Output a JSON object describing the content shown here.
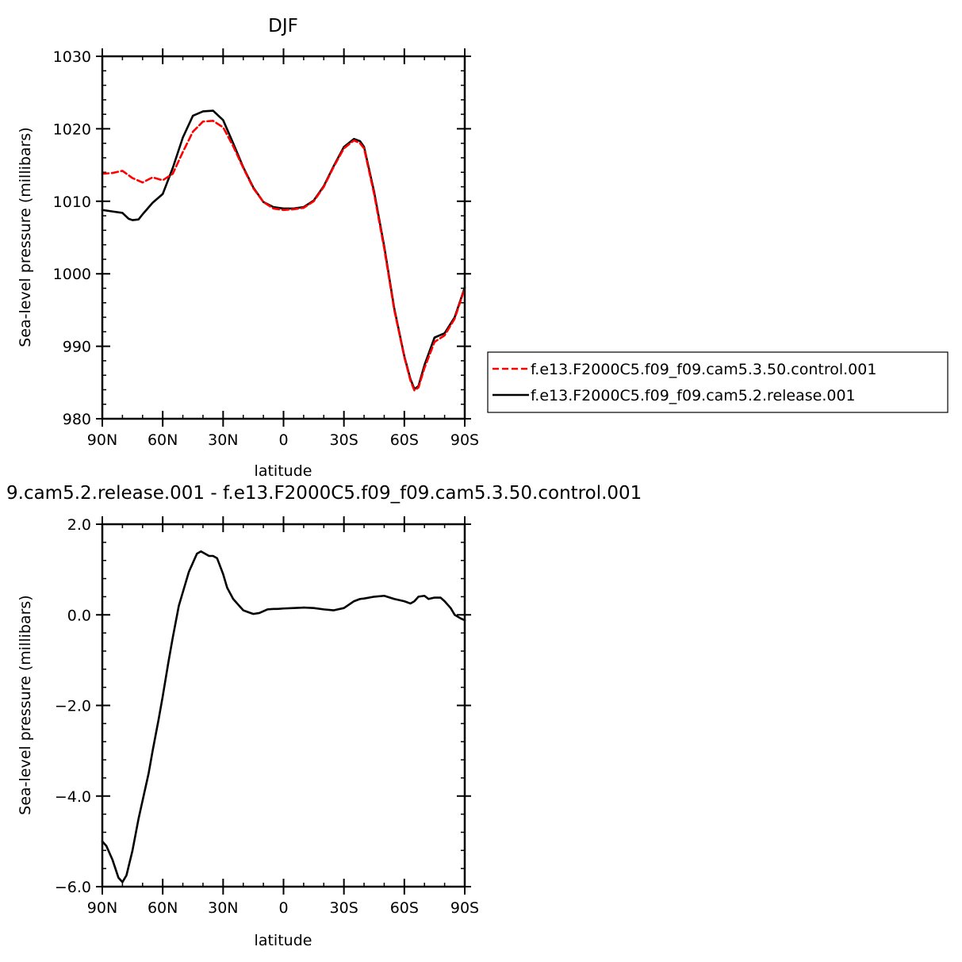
{
  "chart_data": [
    {
      "type": "line",
      "title": "DJF",
      "xlabel": "latitude",
      "ylabel": "Sea-level pressure (millibars)",
      "xlim": [
        90,
        -90
      ],
      "ylim": [
        980,
        1030
      ],
      "xticks": [
        90,
        60,
        30,
        0,
        -30,
        -60,
        -90
      ],
      "xtick_labels": [
        "90N",
        "60N",
        "30N",
        "0",
        "30S",
        "60S",
        "90S"
      ],
      "yticks": [
        980,
        990,
        1000,
        1010,
        1020,
        1030
      ],
      "ytick_labels": [
        "980",
        "990",
        "1000",
        "1010",
        "1020",
        "1030"
      ],
      "legend_position": "right",
      "series": [
        {
          "name": "f.e13.F2000C5.f09_f09.cam5.3.50.control.001",
          "color": "#ff0000",
          "style": "dashed",
          "x": [
            90,
            85,
            80,
            75,
            70,
            65,
            60,
            55,
            50,
            45,
            40,
            35,
            30,
            25,
            20,
            15,
            10,
            5,
            0,
            -5,
            -10,
            -15,
            -20,
            -25,
            -30,
            -35,
            -38,
            -40,
            -45,
            -50,
            -55,
            -60,
            -63,
            -65,
            -67,
            -70,
            -75,
            -80,
            -85,
            -90
          ],
          "y": [
            1013.8,
            1013.9,
            1014.2,
            1013.2,
            1012.6,
            1013.3,
            1012.9,
            1013.8,
            1016.8,
            1019.6,
            1021.0,
            1021.1,
            1020.2,
            1017.6,
            1014.6,
            1011.8,
            1009.9,
            1009.0,
            1008.8,
            1008.9,
            1009.1,
            1010.0,
            1012.0,
            1014.8,
            1017.3,
            1018.4,
            1018.0,
            1017.3,
            1011.0,
            1003.5,
            995.0,
            988.5,
            985.3,
            983.9,
            984.3,
            987.0,
            990.6,
            991.5,
            993.8,
            998.0
          ]
        },
        {
          "name": "f.e13.F2000C5.f09_f09.cam5.2.release.001",
          "color": "#000000",
          "style": "solid",
          "x": [
            90,
            85,
            80,
            77,
            75,
            72,
            70,
            65,
            60,
            55,
            50,
            45,
            40,
            35,
            30,
            25,
            20,
            15,
            10,
            5,
            0,
            -5,
            -10,
            -15,
            -20,
            -25,
            -30,
            -35,
            -38,
            -40,
            -45,
            -50,
            -55,
            -60,
            -63,
            -65,
            -67,
            -70,
            -75,
            -80,
            -85,
            -90
          ],
          "y": [
            1008.8,
            1008.6,
            1008.4,
            1007.6,
            1007.4,
            1007.5,
            1008.2,
            1009.8,
            1011.0,
            1014.6,
            1018.8,
            1021.8,
            1022.4,
            1022.5,
            1021.2,
            1018.0,
            1014.7,
            1011.9,
            1009.9,
            1009.2,
            1009.0,
            1009.0,
            1009.2,
            1010.1,
            1012.1,
            1014.9,
            1017.5,
            1018.6,
            1018.3,
            1017.5,
            1011.3,
            1003.8,
            995.2,
            988.6,
            985.5,
            984.1,
            984.5,
            987.4,
            991.2,
            991.8,
            994.0,
            998.1
          ]
        }
      ]
    },
    {
      "type": "line",
      "title": "9.cam5.2.release.001 - f.e13.F2000C5.f09_f09.cam5.3.50.control.001",
      "xlabel": "latitude",
      "ylabel": "Sea-level pressure (millibars)",
      "xlim": [
        90,
        -90
      ],
      "ylim": [
        -6.0,
        2.0
      ],
      "xticks": [
        90,
        60,
        30,
        0,
        -30,
        -60,
        -90
      ],
      "xtick_labels": [
        "90N",
        "60N",
        "30N",
        "0",
        "30S",
        "60S",
        "90S"
      ],
      "yticks": [
        -6,
        -4,
        -2,
        0,
        2
      ],
      "ytick_labels": [
        "−6.0",
        "−4.0",
        "−2.0",
        "0.0",
        "2.0"
      ],
      "series": [
        {
          "color": "#000000",
          "style": "solid",
          "x": [
            90,
            88,
            85,
            82,
            80,
            78,
            75,
            72,
            70,
            67,
            65,
            62,
            60,
            57,
            55,
            52,
            50,
            47,
            45,
            43,
            41,
            39,
            37,
            35,
            33,
            30,
            28,
            25,
            22,
            20,
            17,
            15,
            12,
            10,
            8,
            5,
            3,
            0,
            -5,
            -10,
            -15,
            -20,
            -25,
            -30,
            -35,
            -38,
            -40,
            -45,
            -50,
            -55,
            -60,
            -63,
            -65,
            -67,
            -70,
            -72,
            -75,
            -78,
            -80,
            -83,
            -85,
            -88,
            -90
          ],
          "y": [
            -5.0,
            -5.1,
            -5.4,
            -5.8,
            -5.9,
            -5.75,
            -5.2,
            -4.5,
            -4.1,
            -3.5,
            -3.0,
            -2.3,
            -1.8,
            -1.0,
            -0.5,
            0.2,
            0.5,
            0.95,
            1.15,
            1.35,
            1.4,
            1.35,
            1.3,
            1.3,
            1.25,
            0.9,
            0.6,
            0.35,
            0.2,
            0.1,
            0.05,
            0.02,
            0.04,
            0.08,
            0.12,
            0.13,
            0.13,
            0.14,
            0.15,
            0.16,
            0.15,
            0.12,
            0.1,
            0.15,
            0.3,
            0.35,
            0.36,
            0.4,
            0.42,
            0.35,
            0.3,
            0.25,
            0.3,
            0.4,
            0.42,
            0.35,
            0.38,
            0.38,
            0.3,
            0.15,
            0.0,
            -0.08,
            -0.12
          ]
        }
      ]
    }
  ]
}
